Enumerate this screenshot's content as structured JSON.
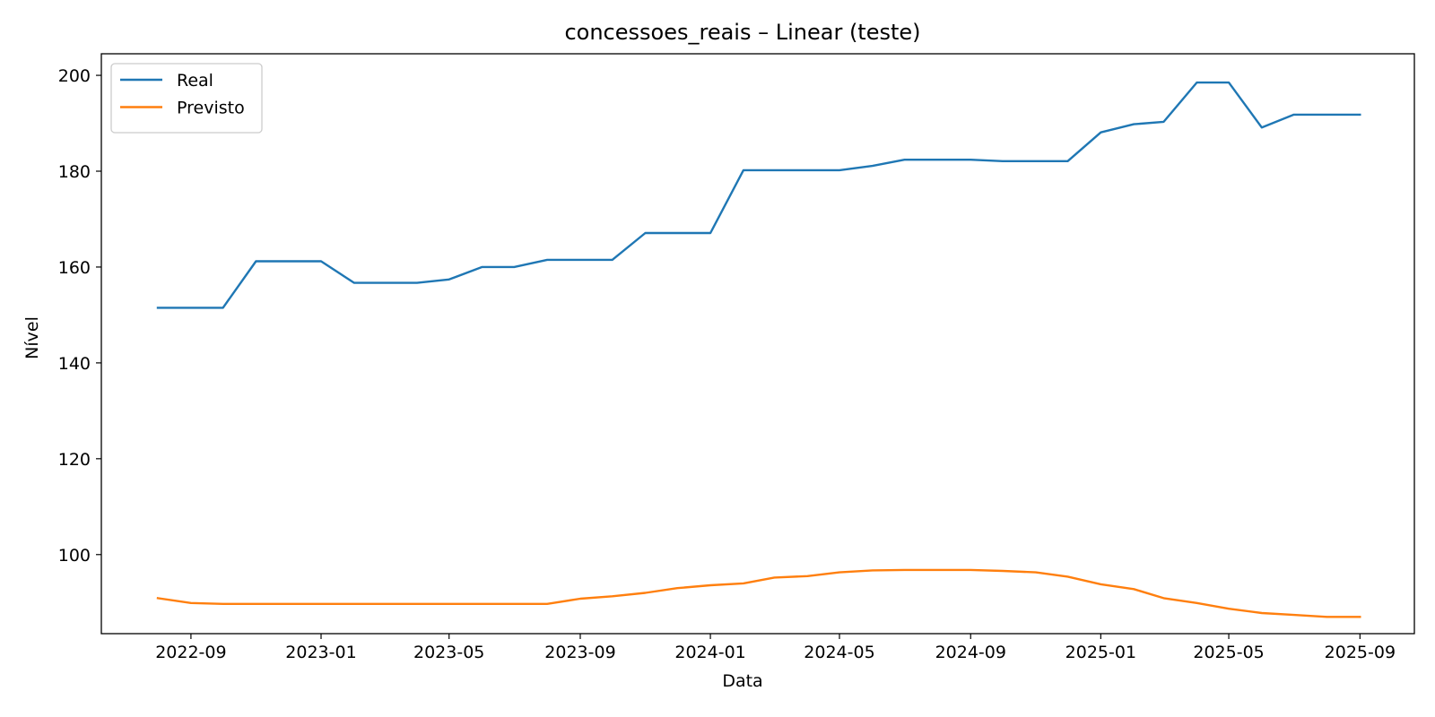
{
  "chart_data": {
    "type": "line",
    "title": "concessoes_reais – Linear (teste)",
    "xlabel": "Data",
    "ylabel": "Nível",
    "x_tick_labels": [
      "2022-09",
      "2023-01",
      "2023-05",
      "2023-09",
      "2024-01",
      "2024-05",
      "2024-09",
      "2025-01",
      "2025-05",
      "2025-09"
    ],
    "y_ticks": [
      100,
      120,
      140,
      160,
      180,
      200
    ],
    "xlim": [
      "2022-06-09",
      "2025-10-22"
    ],
    "ylim": [
      83.5,
      204.5
    ],
    "grid": false,
    "legend_position": "top-left",
    "x": [
      "2022-08",
      "2022-09",
      "2022-10",
      "2022-11",
      "2022-12",
      "2023-01",
      "2023-02",
      "2023-03",
      "2023-04",
      "2023-05",
      "2023-06",
      "2023-07",
      "2023-08",
      "2023-09",
      "2023-10",
      "2023-11",
      "2023-12",
      "2024-01",
      "2024-02",
      "2024-03",
      "2024-04",
      "2024-05",
      "2024-06",
      "2024-07",
      "2024-08",
      "2024-09",
      "2024-10",
      "2024-11",
      "2024-12",
      "2025-01",
      "2025-02",
      "2025-03",
      "2025-04",
      "2025-05",
      "2025-06",
      "2025-07",
      "2025-08",
      "2025-09"
    ],
    "series": [
      {
        "name": "Real",
        "color": "#1f77b4",
        "values": [
          151.5,
          151.5,
          151.5,
          161.2,
          161.2,
          161.2,
          156.7,
          156.7,
          156.7,
          157.4,
          160.0,
          160.0,
          161.5,
          161.5,
          161.5,
          167.1,
          167.1,
          167.1,
          180.2,
          180.2,
          180.2,
          180.2,
          181.1,
          182.4,
          182.4,
          182.4,
          182.1,
          182.1,
          182.1,
          188.1,
          189.8,
          190.3,
          198.5,
          198.5,
          189.1,
          191.8,
          191.8,
          191.8
        ]
      },
      {
        "name": "Previsto",
        "color": "#ff7f0e",
        "values": [
          90.9,
          89.9,
          89.7,
          89.7,
          89.7,
          89.7,
          89.7,
          89.7,
          89.7,
          89.7,
          89.7,
          89.7,
          89.7,
          90.8,
          91.3,
          92.0,
          93.0,
          93.6,
          94.0,
          95.2,
          95.5,
          96.3,
          96.7,
          96.8,
          96.8,
          96.8,
          96.6,
          96.3,
          95.4,
          93.8,
          92.8,
          90.9,
          89.9,
          88.7,
          87.8,
          87.4,
          87.0,
          87.0
        ]
      }
    ]
  }
}
